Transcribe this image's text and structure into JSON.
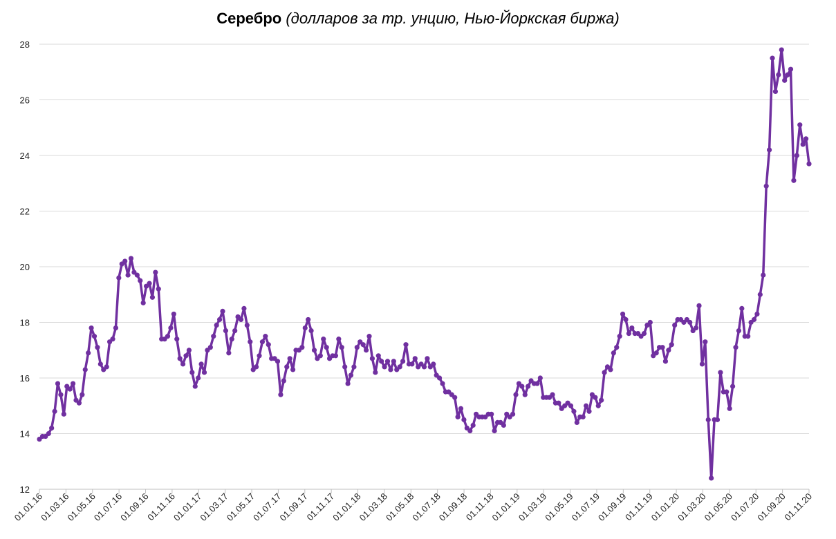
{
  "chart_data": {
    "type": "line",
    "title": "Серебро",
    "subtitle": "(долларов за тр. унцию, Нью-Йоркская биржа)",
    "xlabel": "",
    "ylabel": "",
    "ylim": [
      12,
      28
    ],
    "yticks": [
      12,
      14,
      16,
      18,
      20,
      22,
      24,
      26,
      28
    ],
    "grid": true,
    "legend": "none",
    "colors": {
      "line": "#7030A0",
      "grid": "#D9D9D9",
      "axis": "#BFBFBF"
    },
    "xtick_labels": [
      "01.01.16",
      "01.03.16",
      "01.05.16",
      "01.07.16",
      "01.09.16",
      "01.11.16",
      "01.01.17",
      "01.03.17",
      "01.05.17",
      "01.07.17",
      "01.09.17",
      "01.11.17",
      "01.01.18",
      "01.03.18",
      "01.05.18",
      "01.07.18",
      "01.09.18",
      "01.11.18",
      "01.01.19",
      "01.03.19",
      "01.05.19",
      "01.07.19",
      "01.09.19",
      "01.11.19",
      "01.01.20",
      "01.03.20",
      "01.05.20",
      "01.07.20",
      "01.09.20",
      "01.11.20"
    ],
    "series": [
      {
        "values": [
          13.8,
          13.9,
          13.9,
          14.0,
          14.2,
          14.8,
          15.8,
          15.4,
          14.7,
          15.7,
          15.6,
          15.8,
          15.2,
          15.1,
          15.4,
          16.3,
          16.9,
          17.8,
          17.5,
          17.1,
          16.5,
          16.3,
          16.4,
          17.3,
          17.4,
          17.8,
          19.6,
          20.1,
          20.2,
          19.7,
          20.3,
          19.8,
          19.7,
          19.5,
          18.7,
          19.3,
          19.4,
          18.9,
          19.8,
          19.2,
          17.4,
          17.4,
          17.5,
          17.8,
          18.3,
          17.4,
          16.7,
          16.5,
          16.8,
          17.0,
          16.2,
          15.7,
          16.0,
          16.5,
          16.2,
          17.0,
          17.1,
          17.5,
          17.9,
          18.1,
          18.4,
          17.7,
          16.9,
          17.4,
          17.7,
          18.2,
          18.1,
          18.5,
          17.9,
          17.3,
          16.3,
          16.4,
          16.8,
          17.3,
          17.5,
          17.2,
          16.7,
          16.7,
          16.6,
          15.4,
          15.9,
          16.4,
          16.7,
          16.3,
          17.0,
          17.0,
          17.1,
          17.8,
          18.1,
          17.7,
          17.0,
          16.7,
          16.8,
          17.4,
          17.1,
          16.7,
          16.8,
          16.8,
          17.4,
          17.1,
          16.4,
          15.8,
          16.1,
          16.4,
          17.1,
          17.3,
          17.2,
          17.0,
          17.5,
          16.7,
          16.2,
          16.8,
          16.6,
          16.4,
          16.6,
          16.3,
          16.6,
          16.3,
          16.4,
          16.6,
          17.2,
          16.5,
          16.5,
          16.7,
          16.4,
          16.5,
          16.4,
          16.7,
          16.4,
          16.5,
          16.1,
          16.0,
          15.8,
          15.5,
          15.5,
          15.4,
          15.3,
          14.6,
          14.9,
          14.5,
          14.2,
          14.1,
          14.3,
          14.7,
          14.6,
          14.6,
          14.6,
          14.7,
          14.7,
          14.1,
          14.4,
          14.4,
          14.3,
          14.7,
          14.6,
          14.7,
          15.4,
          15.8,
          15.7,
          15.4,
          15.7,
          15.9,
          15.8,
          15.8,
          16.0,
          15.3,
          15.3,
          15.3,
          15.4,
          15.1,
          15.1,
          14.9,
          15.0,
          15.1,
          15.0,
          14.8,
          14.4,
          14.6,
          14.6,
          15.0,
          14.8,
          15.4,
          15.3,
          15.0,
          15.2,
          16.2,
          16.4,
          16.3,
          16.9,
          17.1,
          17.5,
          18.3,
          18.1,
          17.6,
          17.8,
          17.6,
          17.6,
          17.5,
          17.6,
          17.9,
          18.0,
          16.8,
          16.9,
          17.1,
          17.1,
          16.6,
          17.0,
          17.2,
          17.9,
          18.1,
          18.1,
          18.0,
          18.1,
          18.0,
          17.7,
          17.8,
          18.6,
          16.5,
          17.3,
          14.5,
          12.4,
          14.5,
          14.5,
          16.2,
          15.5,
          15.5,
          14.9,
          15.7,
          17.1,
          17.7,
          18.5,
          17.5,
          17.5,
          18.0,
          18.1,
          18.3,
          19.0,
          19.7,
          22.9,
          24.2,
          27.5,
          26.3,
          26.9,
          27.8,
          26.7,
          26.9,
          27.1,
          23.1,
          24.0,
          25.1,
          24.4,
          24.6,
          23.7
        ]
      }
    ]
  }
}
